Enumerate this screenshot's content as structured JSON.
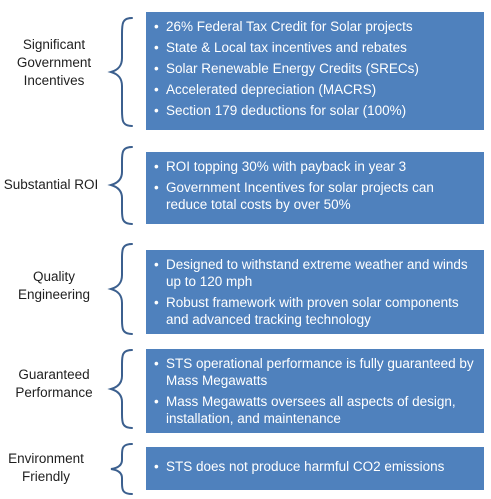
{
  "rows": [
    {
      "label": [
        "Significant",
        "Government",
        "Incentives"
      ],
      "bullets": [
        "26% Federal Tax Credit for Solar projects",
        "State & Local tax incentives and rebates",
        "Solar Renewable Energy Credits (SRECs)",
        "Accelerated depreciation (MACRS)",
        "Section 179 deductions for solar (100%)"
      ]
    },
    {
      "label": [
        "Substantial ROI"
      ],
      "bullets": [
        "ROI topping 30% with payback in year 3",
        "Government Incentives for solar projects can reduce total costs by over 50%"
      ]
    },
    {
      "label": [
        "Quality",
        "Engineering"
      ],
      "bullets": [
        "Designed to withstand extreme weather and winds up to 120 mph",
        "Robust framework with proven solar components and advanced tracking technology"
      ]
    },
    {
      "label": [
        "Guaranteed",
        "Performance"
      ],
      "bullets": [
        "STS operational performance is fully guaranteed by Mass Megawatts",
        "Mass Megawatts oversees all aspects of design, installation, and maintenance"
      ]
    },
    {
      "label": [
        "Environment",
        "Friendly"
      ],
      "bullets": [
        "STS does not produce harmful CO2 emissions"
      ]
    }
  ],
  "colors": {
    "box": "#4f81bd",
    "brace": "#3b5f8e",
    "label": "#1f1f1f"
  }
}
